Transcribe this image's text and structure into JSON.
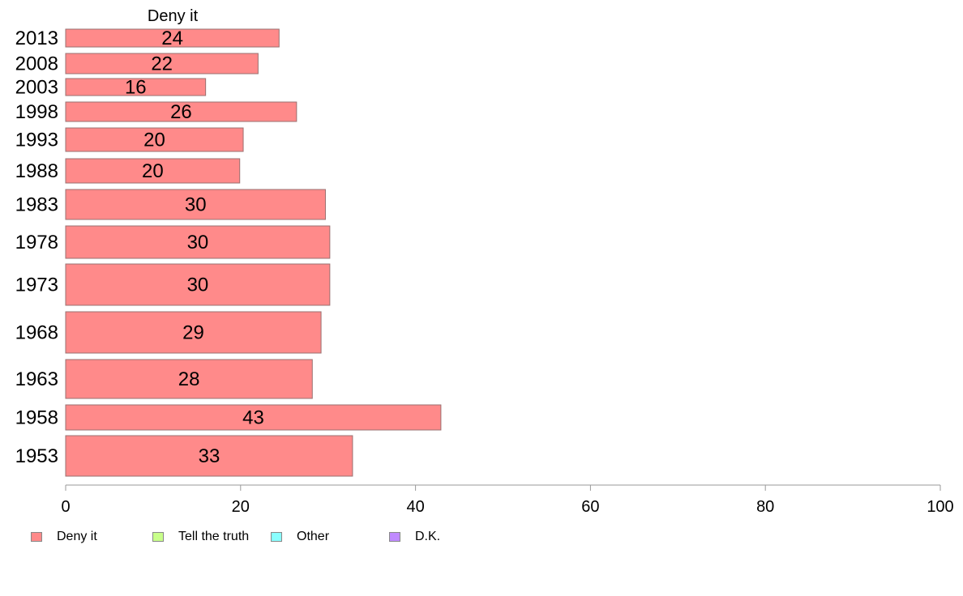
{
  "chart_data": {
    "type": "bar",
    "orientation": "horizontal",
    "title": "Deny it",
    "categories": [
      "2013",
      "2008",
      "2003",
      "1998",
      "1993",
      "1988",
      "1983",
      "1978",
      "1973",
      "1968",
      "1963",
      "1958",
      "1953"
    ],
    "series": [
      {
        "name": "Deny it",
        "color": "#ff8a8a",
        "values": [
          24.4,
          22.0,
          16.0,
          26.4,
          20.3,
          19.9,
          29.7,
          30.2,
          30.2,
          29.2,
          28.2,
          42.9,
          32.8
        ],
        "labels": [
          "24",
          "22",
          "16",
          "26",
          "20",
          "20",
          "30",
          "30",
          "30",
          "29",
          "28",
          "43",
          "33"
        ]
      }
    ],
    "xlim": [
      0,
      100
    ],
    "xticks": [
      0,
      20,
      40,
      60,
      80,
      100
    ],
    "grid": false,
    "legend": {
      "placement": "bottom-left",
      "entries": [
        {
          "label": "Deny it",
          "color": "#ff8a8a"
        },
        {
          "label": "Tell the truth",
          "color": "#c8ff8a"
        },
        {
          "label": "Other",
          "color": "#8affff"
        },
        {
          "label": "D.K.",
          "color": "#c08aff"
        }
      ]
    }
  }
}
